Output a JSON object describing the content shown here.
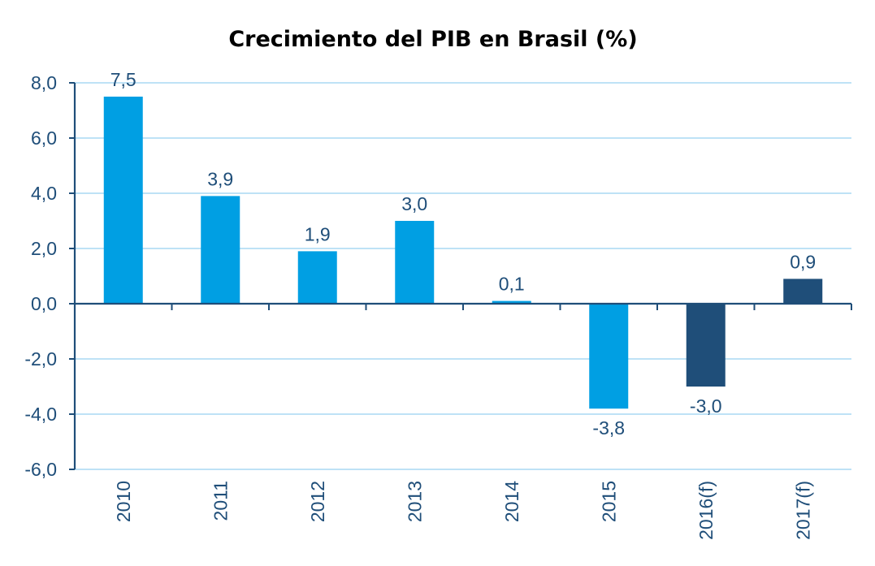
{
  "chart_data": {
    "type": "bar",
    "title": "Crecimiento del PIB en Brasil (%)",
    "xlabel": "",
    "ylabel": "",
    "categories": [
      "2010",
      "2011",
      "2012",
      "2013",
      "2014",
      "2015",
      "2016(f)",
      "2017(f)"
    ],
    "values": [
      7.5,
      3.9,
      1.9,
      3.0,
      0.1,
      -3.8,
      -3.0,
      0.9
    ],
    "value_labels": [
      "7,5",
      "3,9",
      "1,9",
      "3,0",
      "0,1",
      "-3,8",
      "-3,0",
      "0,9"
    ],
    "forecast": [
      false,
      false,
      false,
      false,
      false,
      false,
      true,
      true
    ],
    "ylim": [
      -6,
      8
    ],
    "yticks": [
      8,
      6,
      4,
      2,
      0,
      -2,
      -4,
      -6
    ],
    "ytick_labels": [
      "8,0",
      "6,0",
      "4,0",
      "2,0",
      "0,0",
      "-2,0",
      "-4,0",
      "-6,0"
    ],
    "grid": true,
    "legend": "none",
    "colors": {
      "actual": "#009fe3",
      "forecast": "#1f4e79",
      "grid": "#a9d8f3",
      "axis": "#1f4e79",
      "tick_text": "#1f4e79",
      "label_text": "#1f4e79",
      "title_text": "#000000"
    }
  }
}
